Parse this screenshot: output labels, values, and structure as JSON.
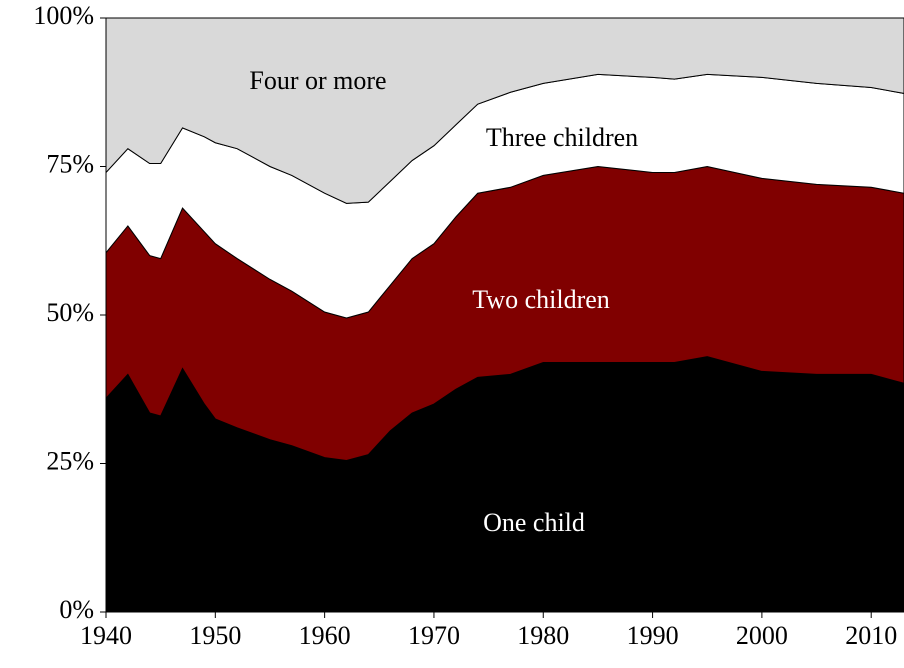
{
  "chart_data": {
    "type": "stacked-area",
    "x": [
      1940,
      1942,
      1944,
      1945,
      1947,
      1949,
      1950,
      1952,
      1955,
      1957,
      1960,
      1962,
      1964,
      1966,
      1968,
      1970,
      1972,
      1974,
      1977,
      1980,
      1985,
      1990,
      1992,
      1995,
      2000,
      2005,
      2010,
      2013
    ],
    "series": [
      {
        "name": "One child",
        "color": "#000000",
        "label_color": "#ffffff",
        "values": [
          36,
          40,
          33.5,
          33,
          41,
          35,
          32.5,
          31,
          29,
          28,
          26,
          25.5,
          26.5,
          30.5,
          33.5,
          35,
          37.5,
          39.5,
          40,
          42,
          42,
          42,
          42,
          43,
          40.5,
          40,
          40,
          38.5
        ]
      },
      {
        "name": "Two children",
        "color": "#800000",
        "label_color": "#ffffff",
        "values": [
          24.5,
          25,
          26.5,
          26.5,
          27,
          29,
          29.5,
          28.5,
          27,
          26,
          24.5,
          24,
          24,
          24.5,
          26,
          27,
          29,
          31,
          31.5,
          31.5,
          33,
          32,
          32,
          32,
          32.5,
          32,
          31.5,
          32
        ]
      },
      {
        "name": "Three children",
        "color": "#ffffff",
        "label_color": "#000000",
        "values": [
          13.5,
          13,
          15.5,
          16,
          13.5,
          16,
          17,
          18.5,
          19,
          19.5,
          20,
          19.3,
          18.5,
          17.5,
          16.5,
          16.5,
          15.5,
          15,
          16,
          15.5,
          15.5,
          16,
          15.7,
          15.5,
          17,
          17,
          16.8,
          16.8
        ]
      },
      {
        "name": "Four or more",
        "color": "#d9d9d9",
        "label_color": "#000000",
        "values": [
          26,
          22,
          24.5,
          24.5,
          18.5,
          20,
          21,
          22,
          25,
          26.5,
          29.5,
          31.2,
          31,
          27.5,
          24,
          21.5,
          18,
          14.5,
          12.5,
          11,
          9.5,
          10,
          10.3,
          9.5,
          10,
          11,
          11.7,
          12.7
        ]
      }
    ],
    "xlim": [
      1940,
      2013
    ],
    "xticks": [
      1940,
      1950,
      1960,
      1970,
      1980,
      1990,
      2000,
      2010
    ],
    "ylim": [
      0,
      100
    ],
    "yticks": [
      {
        "value": 0,
        "label": "0%"
      },
      {
        "value": 25,
        "label": "25%"
      },
      {
        "value": 50,
        "label": "50%"
      },
      {
        "value": 75,
        "label": "75%"
      },
      {
        "value": 100,
        "label": "100%"
      }
    ],
    "grid": false
  }
}
